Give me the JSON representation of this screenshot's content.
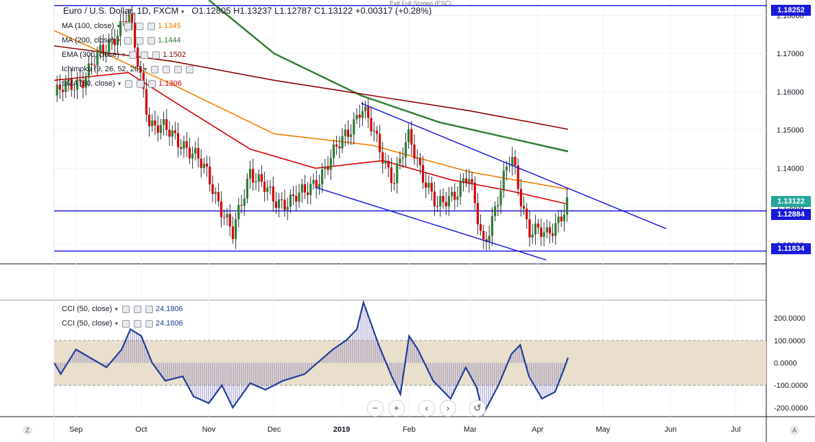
{
  "header": {
    "exit_note": "Exit Full Screen (ESC)",
    "symbol": "Euro / U.S. Dollar, 1D, FXCM",
    "ohlc": "O1.12805  H1.13237  L1.12787  C1.13122  +0.00317 (+0.28%)"
  },
  "legends": {
    "ma100": {
      "label": "MA (100, close)",
      "value": "1.1345",
      "color": "#f57c00"
    },
    "ma200": {
      "label": "MA (200, close)",
      "value": "1.1444",
      "color": "#2e7d32"
    },
    "ema300": {
      "label": "EMA (300, close)",
      "value": "1.1502",
      "color": "#8b0000"
    },
    "ichimoku": {
      "label": "Ichimoku (9, 26, 52, 26)"
    },
    "sma50": {
      "label": "SMA (50, close)",
      "value": "1.1306",
      "color": "#d50000"
    },
    "cci1": {
      "label": "CCI (50, close)",
      "value": "24.1806"
    },
    "cci2": {
      "label": "CCI (50, close)",
      "value": "24.1806"
    }
  },
  "price_tags": {
    "top": "1.18252",
    "current": "1.13122",
    "support1": "1.12884",
    "support2": "1.11834"
  },
  "toolbar": {
    "zoom_out": "−",
    "zoom_in": "+",
    "back": "‹",
    "forward": "›",
    "reset": "↺"
  },
  "corners": {
    "left": "Z",
    "right": "A"
  },
  "icons": {
    "visibility": "eye-icon",
    "settings": "gear-icon",
    "remove": "close-icon",
    "reset": "reset-icon"
  },
  "colors": {
    "up": "#26a69a",
    "down": "#ef5350",
    "up_candle": "#2e7d32",
    "down_candle": "#d50000",
    "level_line": "#1a1adb",
    "channel": "#1a1adb",
    "cci": "#1f3d99",
    "cci_band": "#e9dfcc"
  },
  "chart_data": [
    {
      "type": "line",
      "title": "Euro / U.S. Dollar, 1D, FXCM",
      "price_axis": {
        "ticks": [
          "1.18000",
          "1.17000",
          "1.16000",
          "1.15000",
          "1.14000",
          "1.13000",
          "1.12000"
        ],
        "range": [
          1.115,
          1.184
        ]
      },
      "time_axis": {
        "ticks": [
          "Sep",
          "Oct",
          "Nov",
          "Dec",
          "2019",
          "Feb",
          "Mar",
          "Apr",
          "May",
          "Jun",
          "Jul"
        ]
      },
      "horizontal_levels": [
        1.18252,
        1.12884,
        1.11834
      ],
      "price_close_path": [
        {
          "x": "2018-08-22",
          "y": 1.159
        },
        {
          "x": "2018-09-05",
          "y": 1.164
        },
        {
          "x": "2018-09-20",
          "y": 1.176
        },
        {
          "x": "2018-09-25",
          "y": 1.18
        },
        {
          "x": "2018-10-05",
          "y": 1.152
        },
        {
          "x": "2018-10-20",
          "y": 1.147
        },
        {
          "x": "2018-11-01",
          "y": 1.138
        },
        {
          "x": "2018-11-12",
          "y": 1.122
        },
        {
          "x": "2018-11-20",
          "y": 1.14
        },
        {
          "x": "2018-12-01",
          "y": 1.131
        },
        {
          "x": "2018-12-15",
          "y": 1.133
        },
        {
          "x": "2018-12-28",
          "y": 1.143
        },
        {
          "x": "2019-01-10",
          "y": 1.156
        },
        {
          "x": "2019-01-25",
          "y": 1.137
        },
        {
          "x": "2019-02-01",
          "y": 1.148
        },
        {
          "x": "2019-02-14",
          "y": 1.129
        },
        {
          "x": "2019-02-28",
          "y": 1.138
        },
        {
          "x": "2019-03-07",
          "y": 1.12
        },
        {
          "x": "2019-03-20",
          "y": 1.143
        },
        {
          "x": "2019-03-28",
          "y": 1.124
        },
        {
          "x": "2019-04-05",
          "y": 1.122
        },
        {
          "x": "2019-04-15",
          "y": 1.1312
        }
      ],
      "series": [
        {
          "name": "MA (100, close)",
          "color": "#f57c00",
          "points": [
            {
              "x": "2018-08-22",
              "y": 1.176
            },
            {
              "x": "2018-10-15",
              "y": 1.162
            },
            {
              "x": "2018-12-01",
              "y": 1.149
            },
            {
              "x": "2019-01-15",
              "y": 1.146
            },
            {
              "x": "2019-03-01",
              "y": 1.139
            },
            {
              "x": "2019-04-15",
              "y": 1.1345
            }
          ]
        },
        {
          "name": "MA (200, close)",
          "color": "#2e7d32",
          "points": [
            {
              "x": "2018-11-01",
              "y": 1.184
            },
            {
              "x": "2018-12-01",
              "y": 1.17
            },
            {
              "x": "2019-01-10",
              "y": 1.159
            },
            {
              "x": "2019-02-15",
              "y": 1.152
            },
            {
              "x": "2019-04-15",
              "y": 1.1444
            }
          ]
        },
        {
          "name": "EMA (300, close)",
          "color": "#8b0000",
          "points": [
            {
              "x": "2018-08-22",
              "y": 1.172
            },
            {
              "x": "2018-10-15",
              "y": 1.168
            },
            {
              "x": "2018-12-01",
              "y": 1.163
            },
            {
              "x": "2019-01-15",
              "y": 1.159
            },
            {
              "x": "2019-03-01",
              "y": 1.155
            },
            {
              "x": "2019-04-15",
              "y": 1.1502
            }
          ]
        },
        {
          "name": "SMA (50, close)",
          "color": "#d50000",
          "points": [
            {
              "x": "2018-08-22",
              "y": 1.163
            },
            {
              "x": "2018-09-25",
              "y": 1.165
            },
            {
              "x": "2018-10-20",
              "y": 1.156
            },
            {
              "x": "2018-11-20",
              "y": 1.145
            },
            {
              "x": "2018-12-20",
              "y": 1.14
            },
            {
              "x": "2019-01-20",
              "y": 1.142
            },
            {
              "x": "2019-02-20",
              "y": 1.137
            },
            {
              "x": "2019-03-20",
              "y": 1.134
            },
            {
              "x": "2019-04-15",
              "y": 1.1306
            }
          ]
        }
      ],
      "channel_lines": [
        {
          "from": {
            "x": "2019-01-10",
            "y": 1.157
          },
          "to": {
            "x": "2019-05-30",
            "y": 1.1242
          }
        },
        {
          "from": {
            "x": "2018-12-20",
            "y": 1.135
          },
          "to": {
            "x": "2019-04-05",
            "y": 1.116
          }
        }
      ]
    },
    {
      "type": "area",
      "title": "CCI (50, close)",
      "axis": {
        "ticks": [
          "200.0000",
          "100.0000",
          "0.0000",
          "-100.0000",
          "-200.0000"
        ],
        "range": [
          -240,
          280
        ]
      },
      "band": [
        -100,
        100
      ],
      "last_value": 24.1806,
      "points": [
        {
          "x": "2018-08-22",
          "y": 0
        },
        {
          "x": "2018-08-25",
          "y": -50
        },
        {
          "x": "2018-09-01",
          "y": 60
        },
        {
          "x": "2018-09-08",
          "y": 20
        },
        {
          "x": "2018-09-15",
          "y": -20
        },
        {
          "x": "2018-09-22",
          "y": 60
        },
        {
          "x": "2018-09-26",
          "y": 150
        },
        {
          "x": "2018-10-01",
          "y": 120
        },
        {
          "x": "2018-10-06",
          "y": 0
        },
        {
          "x": "2018-10-12",
          "y": -80
        },
        {
          "x": "2018-10-20",
          "y": -60
        },
        {
          "x": "2018-10-25",
          "y": -150
        },
        {
          "x": "2018-11-01",
          "y": -180
        },
        {
          "x": "2018-11-07",
          "y": -100
        },
        {
          "x": "2018-11-12",
          "y": -200
        },
        {
          "x": "2018-11-20",
          "y": -90
        },
        {
          "x": "2018-11-27",
          "y": -120
        },
        {
          "x": "2018-12-05",
          "y": -80
        },
        {
          "x": "2018-12-15",
          "y": -50
        },
        {
          "x": "2018-12-22",
          "y": 10
        },
        {
          "x": "2018-12-28",
          "y": 60
        },
        {
          "x": "2019-01-03",
          "y": 100
        },
        {
          "x": "2019-01-08",
          "y": 150
        },
        {
          "x": "2019-01-11",
          "y": 270
        },
        {
          "x": "2019-01-18",
          "y": 80
        },
        {
          "x": "2019-01-24",
          "y": -60
        },
        {
          "x": "2019-01-28",
          "y": -140
        },
        {
          "x": "2019-02-01",
          "y": 120
        },
        {
          "x": "2019-02-05",
          "y": 60
        },
        {
          "x": "2019-02-12",
          "y": -80
        },
        {
          "x": "2019-02-20",
          "y": -160
        },
        {
          "x": "2019-02-27",
          "y": -20
        },
        {
          "x": "2019-03-04",
          "y": -110
        },
        {
          "x": "2019-03-07",
          "y": -230
        },
        {
          "x": "2019-03-14",
          "y": -100
        },
        {
          "x": "2019-03-20",
          "y": 40
        },
        {
          "x": "2019-03-24",
          "y": 80
        },
        {
          "x": "2019-03-28",
          "y": -60
        },
        {
          "x": "2019-04-03",
          "y": -160
        },
        {
          "x": "2019-04-09",
          "y": -130
        },
        {
          "x": "2019-04-13",
          "y": -30
        },
        {
          "x": "2019-04-15",
          "y": 24
        }
      ]
    }
  ]
}
